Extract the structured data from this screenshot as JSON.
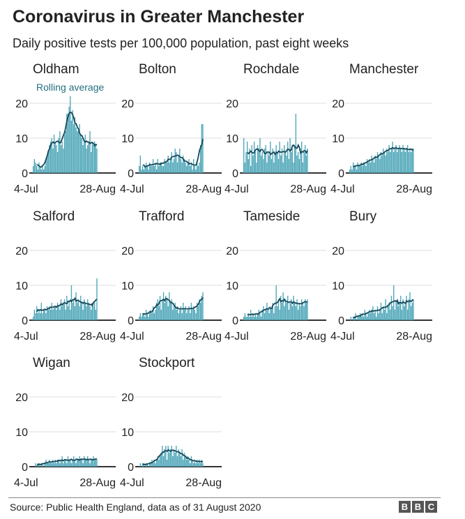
{
  "title": "Coronavirus in Greater Manchester",
  "subtitle": "Daily positive tests per 100,000 population, past eight weeks",
  "source": "Source: Public Health England, data as of 31 August 2020",
  "logo": [
    "B",
    "B",
    "C"
  ],
  "colors": {
    "bar": "#4ea6b8",
    "line": "#17495a",
    "annotation": "#23707f",
    "grid": "#dddddd",
    "axis": "#333333"
  },
  "chart_data": {
    "type": "bar",
    "overlay": "line (7-day rolling average)",
    "annotation": "Rolling average",
    "ylim": [
      0,
      22
    ],
    "yticks": [
      "0",
      "10",
      "20"
    ],
    "xtick_labels": [
      "4-Jul",
      "28-Aug"
    ],
    "x_start": "4-Jul",
    "grid": true,
    "series": [
      {
        "name": "Oldham",
        "values": [
          2,
          4,
          3,
          2,
          1,
          3,
          2,
          1,
          2,
          1,
          2,
          4,
          5,
          6,
          8,
          9,
          10,
          7,
          11,
          9,
          8,
          6,
          10,
          12,
          8,
          9,
          7,
          11,
          12,
          17,
          17,
          19,
          22,
          15,
          18,
          14,
          16,
          13,
          12,
          12,
          14,
          11,
          10,
          8,
          9,
          11,
          7,
          8,
          9,
          12,
          6,
          9,
          8,
          9,
          8,
          7
        ]
      },
      {
        "name": "Bolton",
        "values": [
          2,
          5,
          1,
          2,
          1,
          2,
          3,
          2,
          1,
          3,
          2,
          2,
          4,
          2,
          3,
          1,
          4,
          2,
          3,
          3,
          2,
          2,
          4,
          3,
          3,
          5,
          3,
          4,
          6,
          3,
          4,
          7,
          6,
          3,
          5,
          7,
          4,
          3,
          5,
          4,
          3,
          2,
          3,
          4,
          2,
          3,
          1,
          4,
          2,
          1,
          3,
          2,
          3,
          8,
          14,
          14
        ]
      },
      {
        "name": "Rochdale",
        "values": [
          10,
          3,
          6,
          9,
          4,
          7,
          2,
          8,
          5,
          9,
          6,
          3,
          8,
          7,
          10,
          5,
          6,
          4,
          7,
          8,
          3,
          6,
          5,
          9,
          4,
          7,
          3,
          5,
          8,
          6,
          4,
          9,
          5,
          7,
          3,
          8,
          6,
          5,
          9,
          4,
          10,
          6,
          7,
          3,
          8,
          17,
          5,
          6,
          4,
          7,
          9,
          3,
          6,
          8,
          5,
          7
        ]
      },
      {
        "name": "Manchester",
        "values": [
          1,
          2,
          1,
          3,
          2,
          2,
          1,
          3,
          2,
          2,
          3,
          2,
          3,
          3,
          2,
          4,
          3,
          4,
          3,
          5,
          4,
          3,
          5,
          4,
          6,
          5,
          4,
          6,
          5,
          7,
          6,
          5,
          7,
          6,
          8,
          6,
          7,
          9,
          6,
          7,
          8,
          6,
          7,
          8,
          7,
          6,
          8,
          7,
          6,
          7,
          8,
          6,
          7,
          6,
          7,
          7
        ]
      },
      {
        "name": "Salford",
        "values": [
          1,
          3,
          2,
          4,
          2,
          3,
          2,
          5,
          2,
          3,
          3,
          2,
          4,
          3,
          4,
          3,
          5,
          3,
          4,
          4,
          3,
          5,
          4,
          3,
          6,
          4,
          5,
          6,
          3,
          7,
          4,
          5,
          3,
          10,
          5,
          6,
          4,
          8,
          5,
          6,
          4,
          7,
          5,
          3,
          6,
          5,
          4,
          6,
          5,
          4,
          3,
          5,
          4,
          5,
          3,
          12
        ]
      },
      {
        "name": "Trafford",
        "values": [
          1,
          2,
          1,
          2,
          2,
          1,
          3,
          2,
          1,
          2,
          3,
          2,
          4,
          2,
          3,
          5,
          6,
          4,
          7,
          3,
          6,
          8,
          5,
          7,
          6,
          4,
          8,
          5,
          6,
          3,
          4,
          5,
          3,
          4,
          2,
          3,
          4,
          2,
          5,
          3,
          4,
          2,
          3,
          4,
          2,
          5,
          3,
          4,
          3,
          2,
          5,
          4,
          6,
          5,
          7,
          8
        ]
      },
      {
        "name": "Tameside",
        "values": [
          1,
          2,
          1,
          1,
          2,
          1,
          3,
          1,
          2,
          1,
          2,
          1,
          2,
          3,
          2,
          1,
          3,
          4,
          2,
          3,
          5,
          3,
          2,
          4,
          3,
          5,
          2,
          4,
          10,
          4,
          6,
          3,
          7,
          5,
          8,
          4,
          6,
          5,
          7,
          3,
          5,
          6,
          4,
          7,
          5,
          4,
          6,
          3,
          5,
          4,
          6,
          5,
          4,
          6,
          5,
          6
        ]
      },
      {
        "name": "Bury",
        "values": [
          0,
          1,
          0,
          1,
          1,
          2,
          0,
          1,
          1,
          2,
          1,
          2,
          1,
          3,
          2,
          1,
          2,
          3,
          2,
          3,
          4,
          2,
          3,
          1,
          4,
          2,
          3,
          5,
          2,
          4,
          3,
          6,
          2,
          4,
          5,
          3,
          7,
          4,
          10,
          3,
          5,
          6,
          4,
          5,
          7,
          3,
          6,
          4,
          5,
          7,
          3,
          6,
          8,
          4,
          5,
          6
        ]
      },
      {
        "name": "Wigan",
        "values": [
          0,
          0,
          1,
          0,
          1,
          1,
          0,
          1,
          1,
          0,
          1,
          2,
          1,
          1,
          2,
          1,
          1,
          2,
          1,
          2,
          1,
          2,
          2,
          1,
          2,
          3,
          1,
          2,
          2,
          1,
          3,
          2,
          2,
          1,
          2,
          3,
          2,
          1,
          2,
          2,
          3,
          2,
          2,
          1,
          3,
          2,
          2,
          3,
          2,
          1,
          2,
          2,
          3,
          2,
          2,
          2
        ]
      },
      {
        "name": "Stockport",
        "values": [
          0,
          1,
          0,
          1,
          1,
          0,
          1,
          1,
          0,
          1,
          1,
          2,
          1,
          2,
          1,
          2,
          3,
          2,
          3,
          4,
          6,
          3,
          5,
          6,
          2,
          6,
          4,
          5,
          6,
          3,
          5,
          4,
          6,
          3,
          5,
          4,
          3,
          5,
          2,
          4,
          3,
          2,
          3,
          2,
          1,
          3,
          2,
          1,
          2,
          1,
          2,
          1,
          2,
          1,
          2,
          1
        ]
      }
    ]
  }
}
